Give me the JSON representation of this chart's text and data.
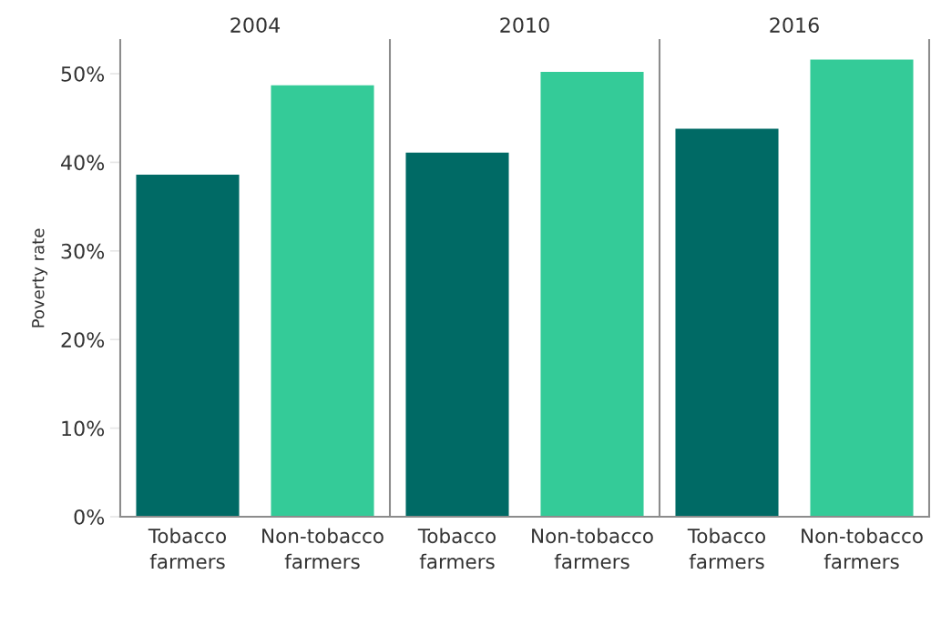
{
  "chart_data": [
    {
      "type": "bar",
      "title": "2004",
      "ylabel": "Poverty rate",
      "categories": [
        "Tobacco farmers",
        "Non-tobacco farmers"
      ],
      "values": [
        38.6,
        48.7
      ],
      "colors": [
        "#006a65",
        "#34cb98"
      ],
      "ylim": [
        0,
        53.8
      ],
      "yticks": [
        {
          "value": 0,
          "label": "0%"
        },
        {
          "value": 10,
          "label": "10%"
        },
        {
          "value": 20,
          "label": "20%"
        },
        {
          "value": 30,
          "label": "30%"
        },
        {
          "value": 40,
          "label": "40%"
        },
        {
          "value": 50,
          "label": "50%"
        }
      ]
    },
    {
      "type": "bar",
      "title": "2010",
      "categories": [
        "Tobacco farmers",
        "Non-tobacco farmers"
      ],
      "values": [
        41.1,
        50.2
      ],
      "colors": [
        "#006a65",
        "#34cb98"
      ],
      "ylim": [
        0,
        53.8
      ],
      "tick_labels": "x"
    },
    {
      "type": "bar",
      "title": "2016",
      "categories": [
        "Tobacco farmers",
        "Non-tobacco farmers"
      ],
      "values": [
        43.8,
        51.6
      ],
      "colors": [
        "#006a65",
        "#34cb98"
      ],
      "ylim": [
        0,
        53.8
      ],
      "tick_labels": "x"
    }
  ]
}
